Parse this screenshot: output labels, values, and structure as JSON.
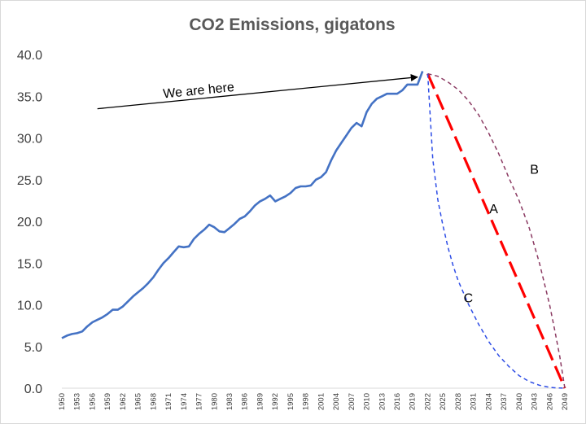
{
  "chart_data": {
    "type": "line",
    "title": "CO2 Emissions, gigatons",
    "xlabel": "",
    "ylabel": "",
    "xlim": [
      1950,
      2049
    ],
    "ylim": [
      0,
      40
    ],
    "grid": false,
    "legend": "none",
    "y_ticks": [
      "0.0",
      "5.0",
      "10.0",
      "15.0",
      "20.0",
      "25.0",
      "30.0",
      "35.0",
      "40.0"
    ],
    "x_ticks": [
      "1950",
      "1953",
      "1956",
      "1959",
      "1962",
      "1965",
      "1968",
      "1971",
      "1974",
      "1977",
      "1980",
      "1983",
      "1986",
      "1989",
      "1992",
      "1995",
      "1998",
      "2001",
      "2004",
      "2007",
      "2010",
      "2013",
      "2016",
      "2019",
      "2022",
      "2025",
      "2028",
      "2031",
      "2034",
      "2037",
      "2040",
      "2043",
      "2046",
      "2049"
    ],
    "series": [
      {
        "color": "#4472c4",
        "style": "solid",
        "x": [
          1950,
          1951,
          1952,
          1953,
          1954,
          1955,
          1956,
          1957,
          1958,
          1959,
          1960,
          1961,
          1962,
          1963,
          1964,
          1965,
          1966,
          1967,
          1968,
          1969,
          1970,
          1971,
          1972,
          1973,
          1974,
          1975,
          1976,
          1977,
          1978,
          1979,
          1980,
          1981,
          1982,
          1983,
          1984,
          1985,
          1986,
          1987,
          1988,
          1989,
          1990,
          1991,
          1992,
          1993,
          1994,
          1995,
          1996,
          1997,
          1998,
          1999,
          2000,
          2001,
          2002,
          2003,
          2004,
          2005,
          2006,
          2007,
          2008,
          2009,
          2010,
          2011,
          2012,
          2013,
          2014,
          2015,
          2016,
          2017,
          2018,
          2019,
          2020,
          2021
        ],
        "values": [
          6.0,
          6.3,
          6.5,
          6.6,
          6.8,
          7.4,
          7.9,
          8.2,
          8.5,
          8.9,
          9.4,
          9.4,
          9.8,
          10.4,
          11.0,
          11.5,
          12.0,
          12.6,
          13.3,
          14.2,
          15.0,
          15.6,
          16.3,
          17.0,
          16.9,
          17.0,
          17.9,
          18.5,
          19.0,
          19.6,
          19.3,
          18.8,
          18.7,
          19.2,
          19.7,
          20.3,
          20.6,
          21.2,
          21.9,
          22.4,
          22.7,
          23.1,
          22.4,
          22.7,
          23.0,
          23.4,
          24.0,
          24.2,
          24.2,
          24.3,
          25.0,
          25.3,
          25.9,
          27.3,
          28.5,
          29.4,
          30.3,
          31.2,
          31.8,
          31.4,
          33.1,
          34.1,
          34.7,
          35.0,
          35.3,
          35.3,
          35.3,
          35.7,
          36.4,
          36.4,
          36.4,
          38.0
        ]
      },
      {
        "name": "A",
        "color": "#ff0000",
        "style": "long-dash",
        "x": [
          2022,
          2049
        ],
        "values": [
          37.7,
          0.0
        ]
      },
      {
        "name": "B",
        "color": "#8b3a62",
        "style": "dash",
        "x": [
          2022,
          2024,
          2026,
          2028,
          2030,
          2032,
          2034,
          2036,
          2038,
          2040,
          2042,
          2044,
          2046,
          2047,
          2048,
          2049
        ],
        "values": [
          37.7,
          37.4,
          36.7,
          35.8,
          34.5,
          32.8,
          30.6,
          28.1,
          25.2,
          22.5,
          19.2,
          15.0,
          10.0,
          7.0,
          3.8,
          0.0
        ]
      },
      {
        "name": "C",
        "color": "#2e4de6",
        "style": "dash",
        "x": [
          2022,
          2023,
          2024,
          2025,
          2026,
          2027,
          2028,
          2030,
          2032,
          2034,
          2036,
          2038,
          2040,
          2042,
          2044,
          2046,
          2047,
          2048,
          2049
        ],
        "values": [
          37.7,
          27.5,
          22.6,
          19.5,
          16.9,
          14.7,
          12.9,
          10.1,
          7.7,
          5.6,
          3.9,
          2.6,
          1.5,
          0.8,
          0.35,
          0.1,
          0.05,
          0.02,
          0.0
        ]
      }
    ],
    "annotations": [
      {
        "text": "We are here",
        "arrow_from": [
          1957,
          33.5
        ],
        "arrow_to": [
          2020,
          37.3
        ],
        "label_at": [
          1977,
          35.2
        ]
      },
      {
        "text": "A",
        "label_at": [
          2035,
          21.0
        ]
      },
      {
        "text": "B",
        "label_at": [
          2043,
          25.7
        ]
      },
      {
        "text": "C",
        "label_at": [
          2030,
          10.3
        ]
      }
    ]
  }
}
